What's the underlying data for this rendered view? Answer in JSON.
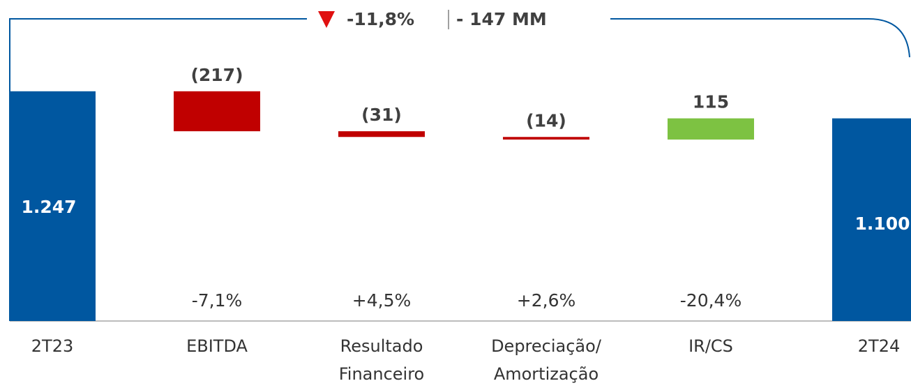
{
  "chart_data": {
    "type": "waterfall",
    "annotation": {
      "change_pct": "-11,8%",
      "change_value": "- 147 MM"
    },
    "categories": [
      [
        "2T23"
      ],
      [
        "EBITDA"
      ],
      [
        "Resultado",
        "Financeiro"
      ],
      [
        "Depreciação/",
        "Amortização"
      ],
      [
        "IR/CS"
      ],
      [
        "2T24"
      ]
    ],
    "values": [
      1247,
      -217,
      -31,
      -14,
      115,
      1100
    ],
    "value_labels": [
      "1.247",
      "(217)",
      "(31)",
      "(14)",
      "115",
      "1.100"
    ],
    "percent_labels": [
      null,
      "-7,1%",
      "+4,5%",
      "+2,6%",
      "-20,4%",
      null
    ],
    "colors": [
      "#0057a0",
      "#c00000",
      "#c00000",
      "#c00000",
      "#7dc242",
      "#0057a0"
    ],
    "ylim": [
      0,
      1250
    ]
  }
}
